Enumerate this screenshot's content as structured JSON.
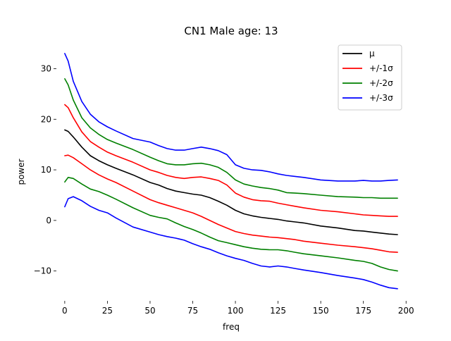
{
  "chart_data": {
    "type": "line",
    "title": "CN1 Male age: 13",
    "xlabel": "freq",
    "ylabel": "power",
    "xlim": [
      -4.9,
      199.9
    ],
    "ylim": [
      -15.9,
      35.5
    ],
    "xticks": [
      0,
      25,
      50,
      75,
      100,
      125,
      150,
      175,
      200
    ],
    "yticks": [
      -10,
      0,
      10,
      20,
      30
    ],
    "grid": false,
    "legend_position": "top-right",
    "x": [
      0,
      2,
      5,
      10,
      15,
      20,
      25,
      30,
      40,
      50,
      55,
      60,
      65,
      70,
      75,
      80,
      85,
      90,
      95,
      100,
      105,
      110,
      115,
      120,
      125,
      130,
      135,
      140,
      150,
      160,
      170,
      175,
      180,
      185,
      190,
      195
    ],
    "series": [
      {
        "name": "μ",
        "color": "#000000",
        "values": [
          17.9,
          17.6,
          16.5,
          14.5,
          12.8,
          11.8,
          11.0,
          10.3,
          9.0,
          7.5,
          7.0,
          6.3,
          5.8,
          5.5,
          5.2,
          5.0,
          4.5,
          3.8,
          3.0,
          2.0,
          1.3,
          0.9,
          0.6,
          0.4,
          0.2,
          -0.1,
          -0.3,
          -0.5,
          -1.1,
          -1.5,
          -2.0,
          -2.1,
          -2.3,
          -2.5,
          -2.7,
          -2.8
        ]
      },
      {
        "name": "+/-1σ",
        "color": "#ff0000",
        "values": [
          22.9,
          22.3,
          20.3,
          17.5,
          15.6,
          14.5,
          13.5,
          12.8,
          11.5,
          10.0,
          9.5,
          8.9,
          8.5,
          8.3,
          8.5,
          8.6,
          8.3,
          7.9,
          7.0,
          5.4,
          4.6,
          4.1,
          3.9,
          3.8,
          3.4,
          3.1,
          2.8,
          2.5,
          2.0,
          1.7,
          1.3,
          1.1,
          1.0,
          0.9,
          0.8,
          0.8
        ]
      },
      {
        "name": "+/-2σ",
        "color": "#008000",
        "values": [
          28.0,
          26.8,
          23.8,
          20.3,
          18.3,
          17.0,
          16.0,
          15.3,
          14.0,
          12.5,
          11.8,
          11.2,
          11.0,
          11.0,
          11.2,
          11.3,
          11.0,
          10.5,
          9.5,
          8.0,
          7.2,
          6.8,
          6.5,
          6.3,
          6.0,
          5.5,
          5.4,
          5.3,
          5.0,
          4.7,
          4.6,
          4.5,
          4.5,
          4.4,
          4.4,
          4.4
        ]
      },
      {
        "name": "+/-3σ",
        "color": "#0000ff",
        "values": [
          33.0,
          31.5,
          27.5,
          23.5,
          21.0,
          19.5,
          18.5,
          17.7,
          16.2,
          15.5,
          14.8,
          14.2,
          13.9,
          13.9,
          14.2,
          14.5,
          14.2,
          13.8,
          13.0,
          11.0,
          10.3,
          10.0,
          9.9,
          9.6,
          9.2,
          8.9,
          8.7,
          8.5,
          8.0,
          7.8,
          7.8,
          7.9,
          7.8,
          7.8,
          7.9,
          8.0
        ]
      },
      {
        "name": "",
        "color": "#ff0000",
        "values": [
          12.8,
          12.9,
          12.4,
          11.2,
          10.0,
          9.0,
          8.2,
          7.5,
          5.8,
          4.1,
          3.5,
          3.0,
          2.5,
          2.0,
          1.5,
          0.8,
          0.0,
          -0.8,
          -1.5,
          -2.2,
          -2.6,
          -2.9,
          -3.1,
          -3.3,
          -3.4,
          -3.6,
          -3.8,
          -4.1,
          -4.5,
          -4.9,
          -5.2,
          -5.4,
          -5.6,
          -5.9,
          -6.2,
          -6.3
        ]
      },
      {
        "name": "",
        "color": "#008000",
        "values": [
          7.6,
          8.5,
          8.3,
          7.2,
          6.2,
          5.7,
          5.0,
          4.2,
          2.5,
          1.0,
          0.6,
          0.3,
          -0.5,
          -1.2,
          -1.8,
          -2.5,
          -3.3,
          -4.0,
          -4.4,
          -4.8,
          -5.2,
          -5.5,
          -5.7,
          -5.8,
          -5.8,
          -6.0,
          -6.3,
          -6.6,
          -7.0,
          -7.4,
          -7.9,
          -8.1,
          -8.5,
          -9.2,
          -9.7,
          -10.0
        ]
      },
      {
        "name": "",
        "color": "#0000ff",
        "values": [
          2.7,
          4.3,
          4.7,
          3.9,
          2.8,
          2.0,
          1.5,
          0.5,
          -1.3,
          -2.3,
          -2.8,
          -3.2,
          -3.5,
          -3.9,
          -4.6,
          -5.2,
          -5.7,
          -6.4,
          -7.0,
          -7.5,
          -7.9,
          -8.5,
          -9.0,
          -9.2,
          -9.0,
          -9.2,
          -9.5,
          -9.8,
          -10.3,
          -10.9,
          -11.4,
          -11.7,
          -12.2,
          -12.8,
          -13.3,
          -13.5
        ]
      }
    ]
  }
}
